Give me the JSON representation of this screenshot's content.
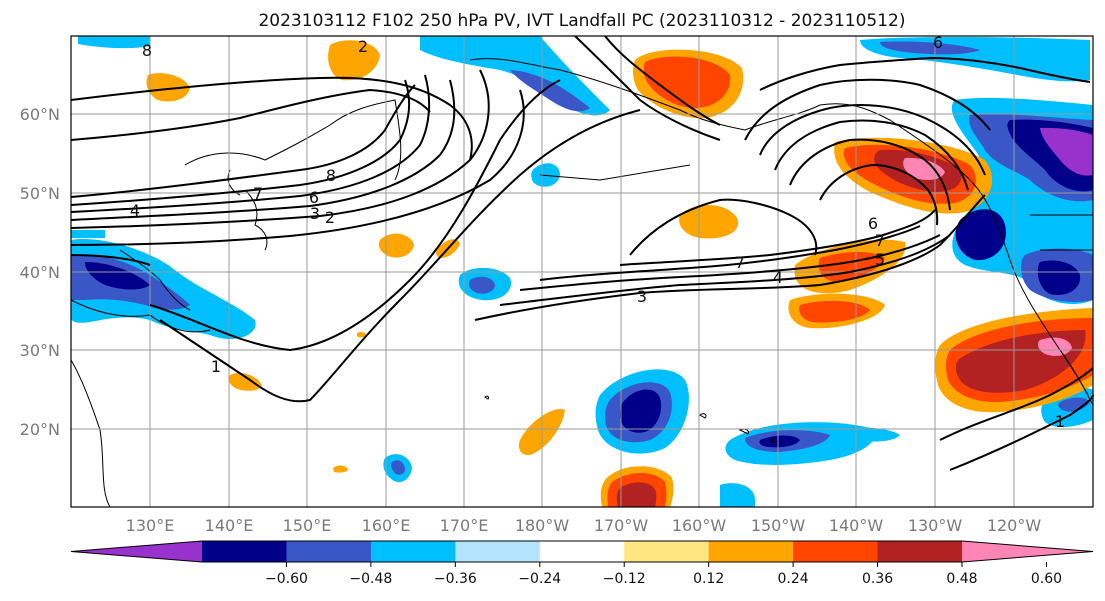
{
  "title": "2023103112 F102 250 hPa PV, IVT Landfall PC (2023110312 - 2023110512)",
  "lat_labels": [
    "60°N",
    "50°N",
    "40°N",
    "30°N",
    "20°N"
  ],
  "lon_labels": [
    "130°E",
    "140°E",
    "150°E",
    "160°E",
    "170°E",
    "180°W",
    "170°W",
    "160°W",
    "150°W",
    "140°W",
    "130°W",
    "120°W"
  ],
  "colorbar": {
    "ticks": [
      "−0.60",
      "−0.48",
      "−0.36",
      "−0.24",
      "−0.12",
      "0.12",
      "0.24",
      "0.36",
      "0.48",
      "0.60"
    ],
    "colors": [
      "#9932cc",
      "#00008b",
      "#3a57c8",
      "#00bfff",
      "#b3e3ff",
      "#ffffff",
      "#ffe680",
      "#ffa500",
      "#ff4500",
      "#b22222",
      "#ff85b5"
    ]
  },
  "contour_labels": [
    "8",
    "2",
    "7",
    "6",
    "4",
    "3",
    "2",
    "8",
    "6",
    "7",
    "5",
    "6",
    "7",
    "4",
    "3",
    "1",
    "1"
  ]
}
